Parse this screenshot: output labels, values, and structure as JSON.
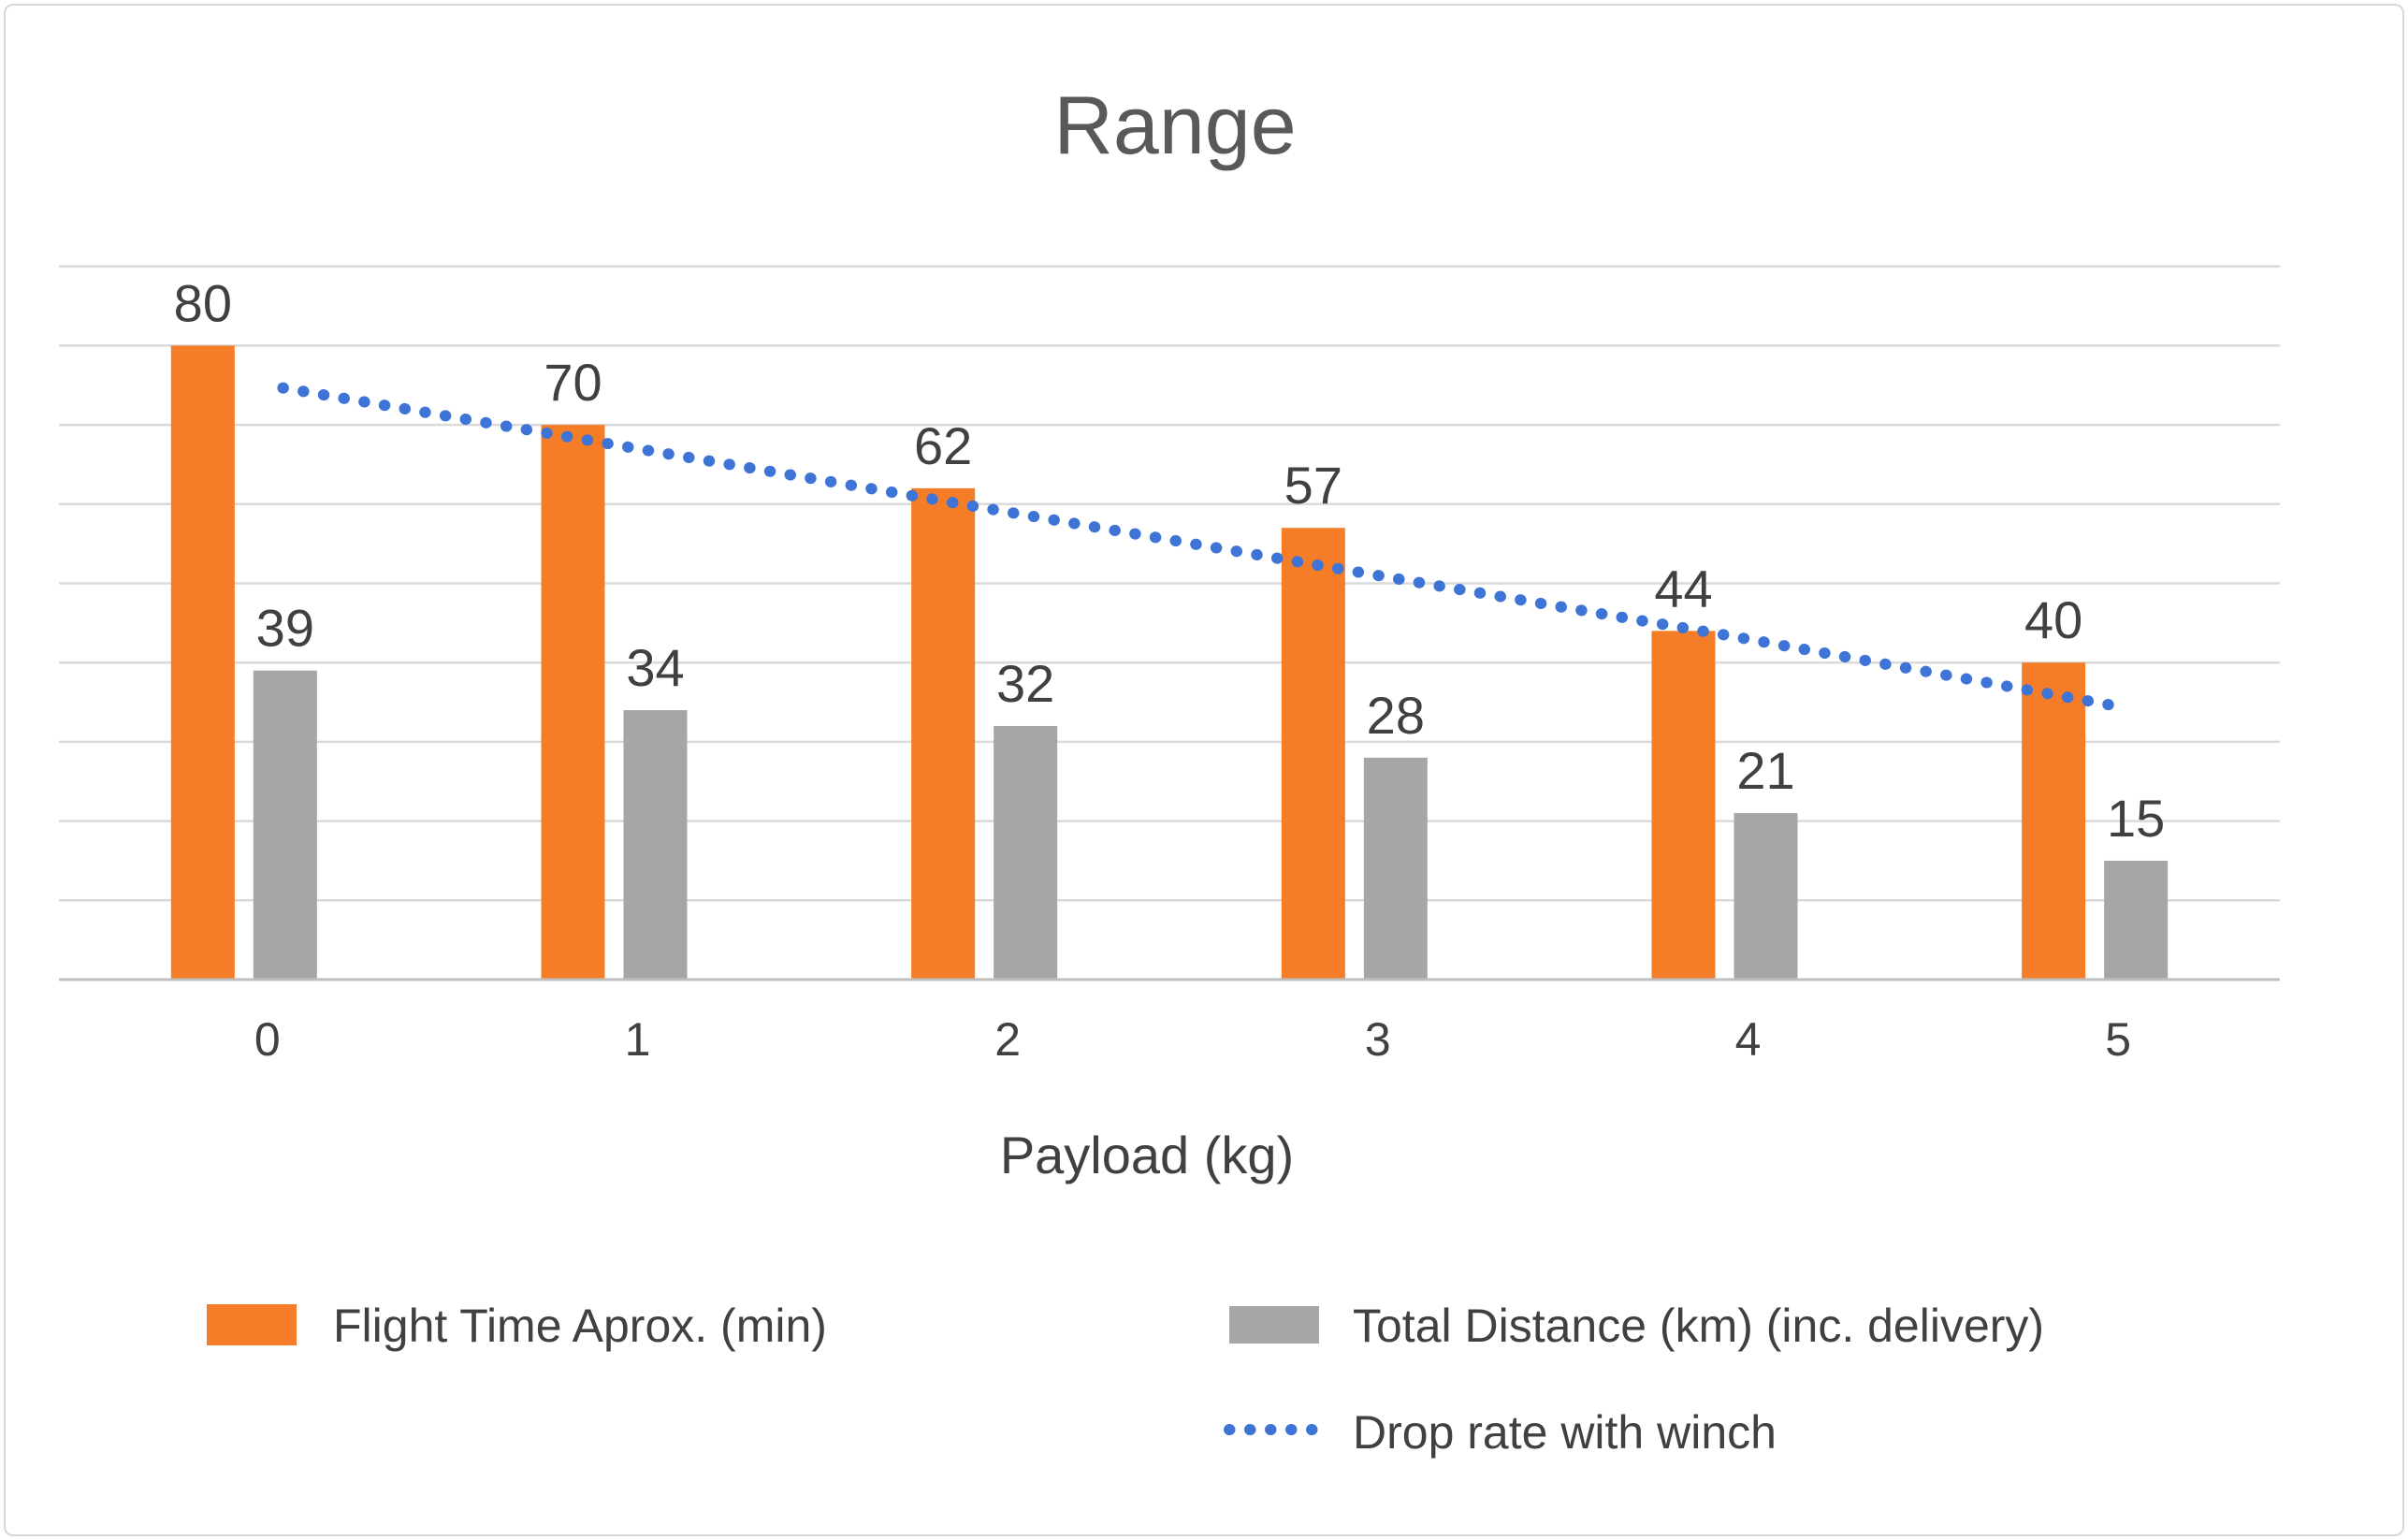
{
  "chart_data": {
    "type": "bar",
    "title": "Range",
    "xlabel": "Payload (kg)",
    "categories": [
      "0",
      "1",
      "2",
      "3",
      "4",
      "5"
    ],
    "series": [
      {
        "name": "Flight Time Aprox. (min)",
        "color": "#f67d28",
        "values": [
          80,
          70,
          62,
          57,
          44,
          40
        ]
      },
      {
        "name": "Total Distance (km) (inc. delivery)",
        "color": "#a6a6a6",
        "values": [
          39,
          34,
          32,
          28,
          21,
          15
        ]
      }
    ],
    "trendline": {
      "name": "Drop rate with winch",
      "color": "#3e74d6",
      "style": "dotted",
      "values": [
        75.5,
        67.5,
        59.5,
        51.5,
        43.5,
        35
      ]
    },
    "ylim": [
      0,
      90
    ],
    "gridline_step": 10,
    "grid": true,
    "value_labels": true,
    "legend_position": "bottom",
    "colors": {
      "grid": "#dadada",
      "axis": "#bfbfbf",
      "label": "#404040",
      "title": "#595959"
    }
  }
}
